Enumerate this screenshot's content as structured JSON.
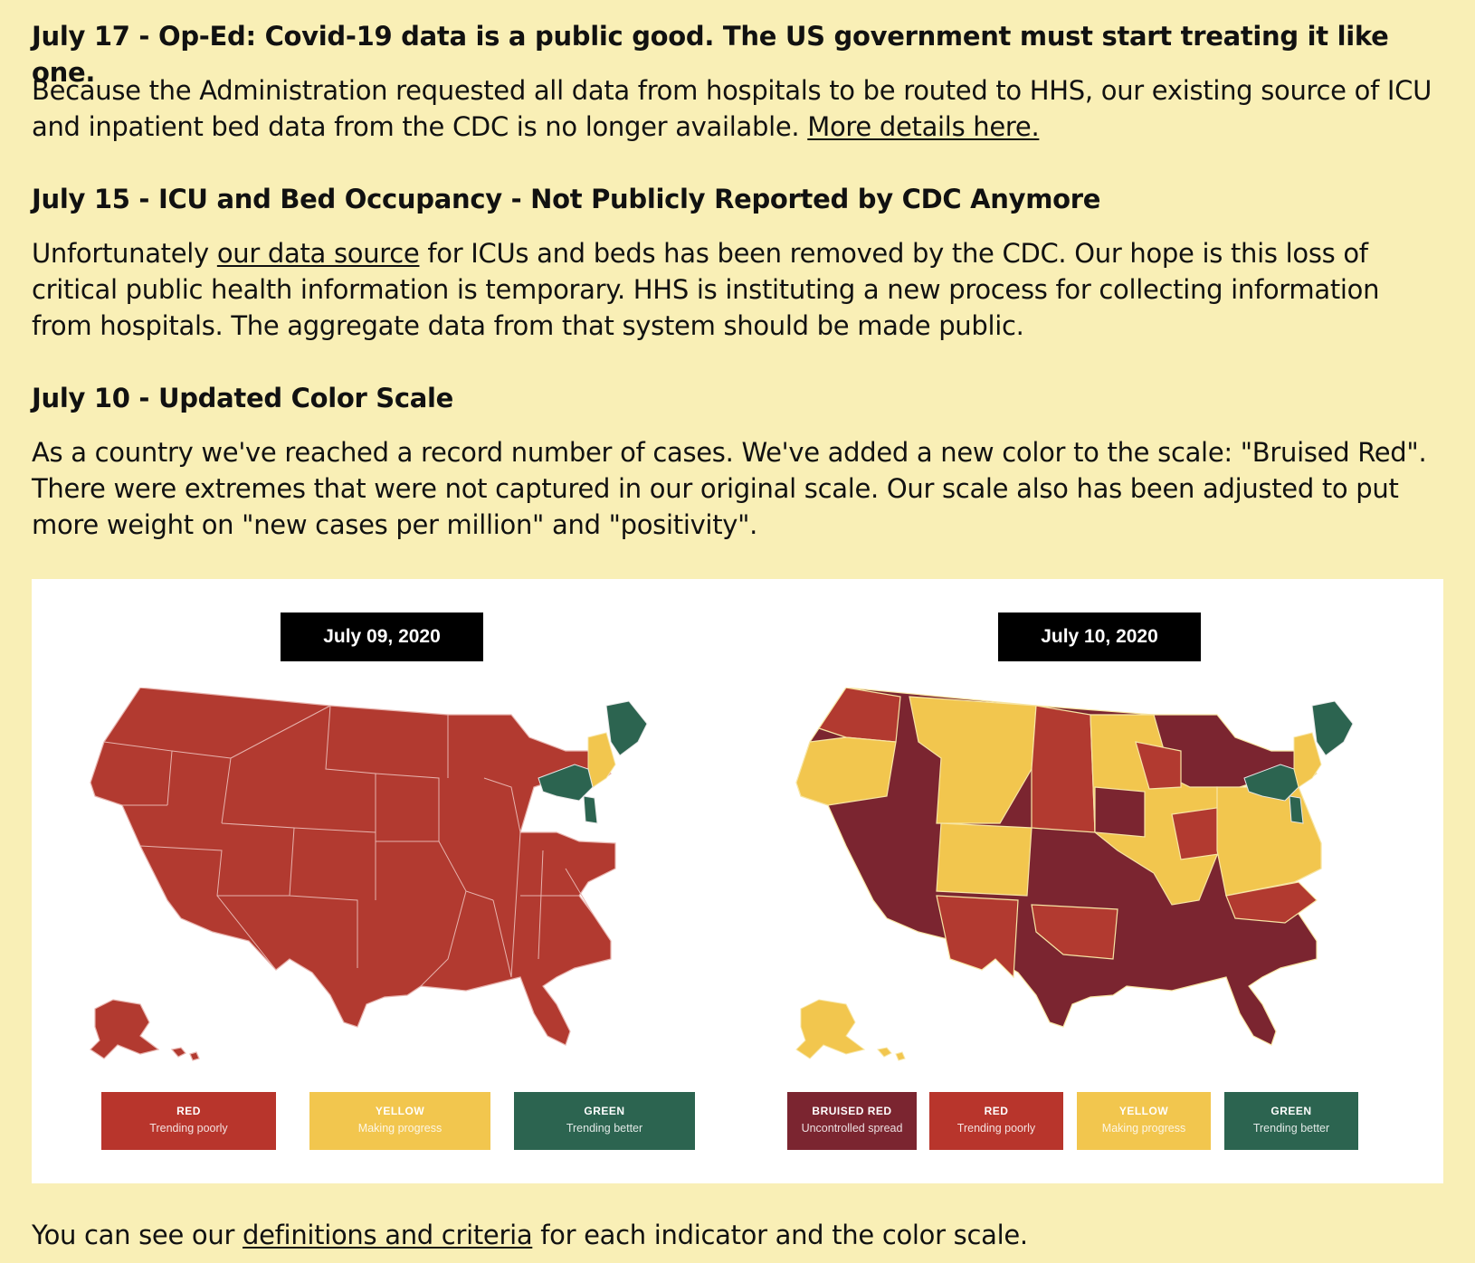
{
  "updates": [
    {
      "heading": "July 17 - Op-Ed: Covid-19 data is a public good. The US government must start treating it like one.",
      "body_before": "Because the Administration requested all data from hospitals to be routed to HHS, our existing source of ICU and inpatient bed data from the CDC is no longer available. ",
      "link": "More details here.",
      "body_after": ""
    },
    {
      "heading": "July 15 - ICU and Bed Occupancy - Not Publicly Reported by CDC Anymore",
      "body_before": "Unfortunately ",
      "link": "our data source",
      "body_after": " for ICUs and beds has been removed by the CDC. Our hope is this loss of critical public health information is temporary. HHS is instituting a new process for collecting information from hospitals. The aggregate data from that system should be made public."
    },
    {
      "heading": "July 10 - Updated Color Scale",
      "body": "As a country we've reached a record number of cases. We've added a new color to the scale: \"Bruised Red\". There were extremes that were not captured in our original scale. Our scale also has been adjusted to put more weight on \"new cases per million\" and \"positivity\"."
    }
  ],
  "figure": {
    "left_map": {
      "date": "July 09, 2020",
      "legend": [
        {
          "title": "RED",
          "subtitle": "Trending poorly",
          "color": "#b8352c"
        },
        {
          "title": "YELLOW",
          "subtitle": "Making progress",
          "color": "#f2c64e"
        },
        {
          "title": "GREEN",
          "subtitle": "Trending better",
          "color": "#2c6450"
        }
      ]
    },
    "right_map": {
      "date": "July 10, 2020",
      "legend": [
        {
          "title": "BRUISED RED",
          "subtitle": "Uncontrolled spread",
          "color": "#7b2530"
        },
        {
          "title": "RED",
          "subtitle": "Trending poorly",
          "color": "#b8352c"
        },
        {
          "title": "YELLOW",
          "subtitle": "Making progress",
          "color": "#f2c64e"
        },
        {
          "title": "GREEN",
          "subtitle": "Trending better",
          "color": "#2c6450"
        }
      ]
    }
  },
  "footer": {
    "before": "You can see our ",
    "link": "definitions and criteria",
    "after": " for each indicator and the color scale."
  }
}
